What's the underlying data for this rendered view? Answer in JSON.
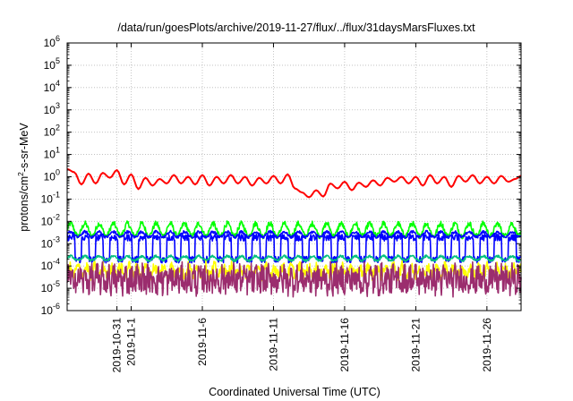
{
  "chart_data": {
    "type": "line",
    "title": "/data/run/goesPlots/archive/2019-11-27/flux/../flux/31daysMarsFluxes.txt",
    "xlabel": "Coordinated Universal Time (UTC)",
    "ylabel": "protons/cm2-s-sr-MeV",
    "ylabel_parts": {
      "before": "protons/cm",
      "sup": "2",
      "after": "-s-sr-MeV"
    },
    "y_scale": "log",
    "ylim": [
      1e-06,
      1000000.0
    ],
    "y_tick_exponents": [
      -6,
      -5,
      -4,
      -3,
      -2,
      -1,
      0,
      1,
      2,
      3,
      4,
      5,
      6
    ],
    "y_tick_base": "10",
    "x_range_days": [
      "2019-10-27.5",
      "2019-11-28.4"
    ],
    "x_ticks": [
      "2019-10-31",
      "2019-11-1",
      "2019-11-6",
      "2019-11-11",
      "2019-11-16",
      "2019-11-21",
      "2019-11-26"
    ],
    "grid": true,
    "legend": "none",
    "series": [
      {
        "color": "#ff0000",
        "x": [
          "2019-10-27.5",
          "2019-10-28.0",
          "2019-10-28.5",
          "2019-10-29.0",
          "2019-10-29.5",
          "2019-10-30.0",
          "2019-10-30.5",
          "2019-10-31.0",
          "2019-10-31.5",
          "2019-11-01.0",
          "2019-11-01.5",
          "2019-11-02.0",
          "2019-11-02.5",
          "2019-11-03.0",
          "2019-11-03.5",
          "2019-11-04.0",
          "2019-11-04.5",
          "2019-11-05.0",
          "2019-11-05.5",
          "2019-11-06.0",
          "2019-11-06.5",
          "2019-11-07.0",
          "2019-11-07.5",
          "2019-11-08.0",
          "2019-11-08.5",
          "2019-11-09.0",
          "2019-11-09.5",
          "2019-11-10.0",
          "2019-11-10.5",
          "2019-11-11.0",
          "2019-11-11.5",
          "2019-11-12.0",
          "2019-11-12.5",
          "2019-11-13.0",
          "2019-11-13.5",
          "2019-11-14.0",
          "2019-11-14.5",
          "2019-11-15.0",
          "2019-11-15.5",
          "2019-11-16.0",
          "2019-11-16.5",
          "2019-11-17.0",
          "2019-11-17.5",
          "2019-11-18.0",
          "2019-11-18.5",
          "2019-11-19.0",
          "2019-11-19.5",
          "2019-11-20.0",
          "2019-11-20.5",
          "2019-11-21.0",
          "2019-11-21.5",
          "2019-11-22.0",
          "2019-11-22.5",
          "2019-11-23.0",
          "2019-11-23.5",
          "2019-11-24.0",
          "2019-11-24.5",
          "2019-11-25.0",
          "2019-11-25.5",
          "2019-11-26.0",
          "2019-11-26.5",
          "2019-11-27.0",
          "2019-11-27.5",
          "2019-11-28.0",
          "2019-11-28.4"
        ],
        "values": [
          2.2,
          1.6,
          0.45,
          1.4,
          0.5,
          1.5,
          0.9,
          2.0,
          0.45,
          1.3,
          0.28,
          0.9,
          0.4,
          0.8,
          0.5,
          1.2,
          0.5,
          1.0,
          0.45,
          1.2,
          0.4,
          1.0,
          0.5,
          1.2,
          0.5,
          1.0,
          0.4,
          0.9,
          0.5,
          1.1,
          0.5,
          1.3,
          0.3,
          0.2,
          0.12,
          0.25,
          0.13,
          0.5,
          0.3,
          0.6,
          0.25,
          0.55,
          0.35,
          0.7,
          0.4,
          0.9,
          0.6,
          1.0,
          0.5,
          1.0,
          0.4,
          1.2,
          0.5,
          1.0,
          0.35,
          1.1,
          0.6,
          1.2,
          0.5,
          1.0,
          0.5,
          1.1,
          0.6,
          0.8,
          1.1
        ]
      },
      {
        "color": "#00ff00",
        "base": 0.0042,
        "amp": 0.28,
        "period_days": 1.0,
        "noise": 0.12
      },
      {
        "color": "#0000ff",
        "base": 0.0026,
        "amp": 0.12,
        "period_days": 1.0,
        "noise": 0.06
      },
      {
        "color": "#0000ff",
        "base": 0.0006,
        "amp": 0.55,
        "period_days": 1.0,
        "noise": 0.15
      },
      {
        "color": "#00c080",
        "base": 0.00022,
        "amp": 0.1,
        "period_days": 1.0,
        "noise": 0.05
      },
      {
        "color": "#ffff00",
        "base": 6e-05,
        "amp": 0.2,
        "period_days": 0.6,
        "noise": 0.25
      },
      {
        "color": "#9b2d6e",
        "base": 2.5e-05,
        "amp": 0.2,
        "period_days": 0.4,
        "noise": 0.6
      }
    ]
  }
}
